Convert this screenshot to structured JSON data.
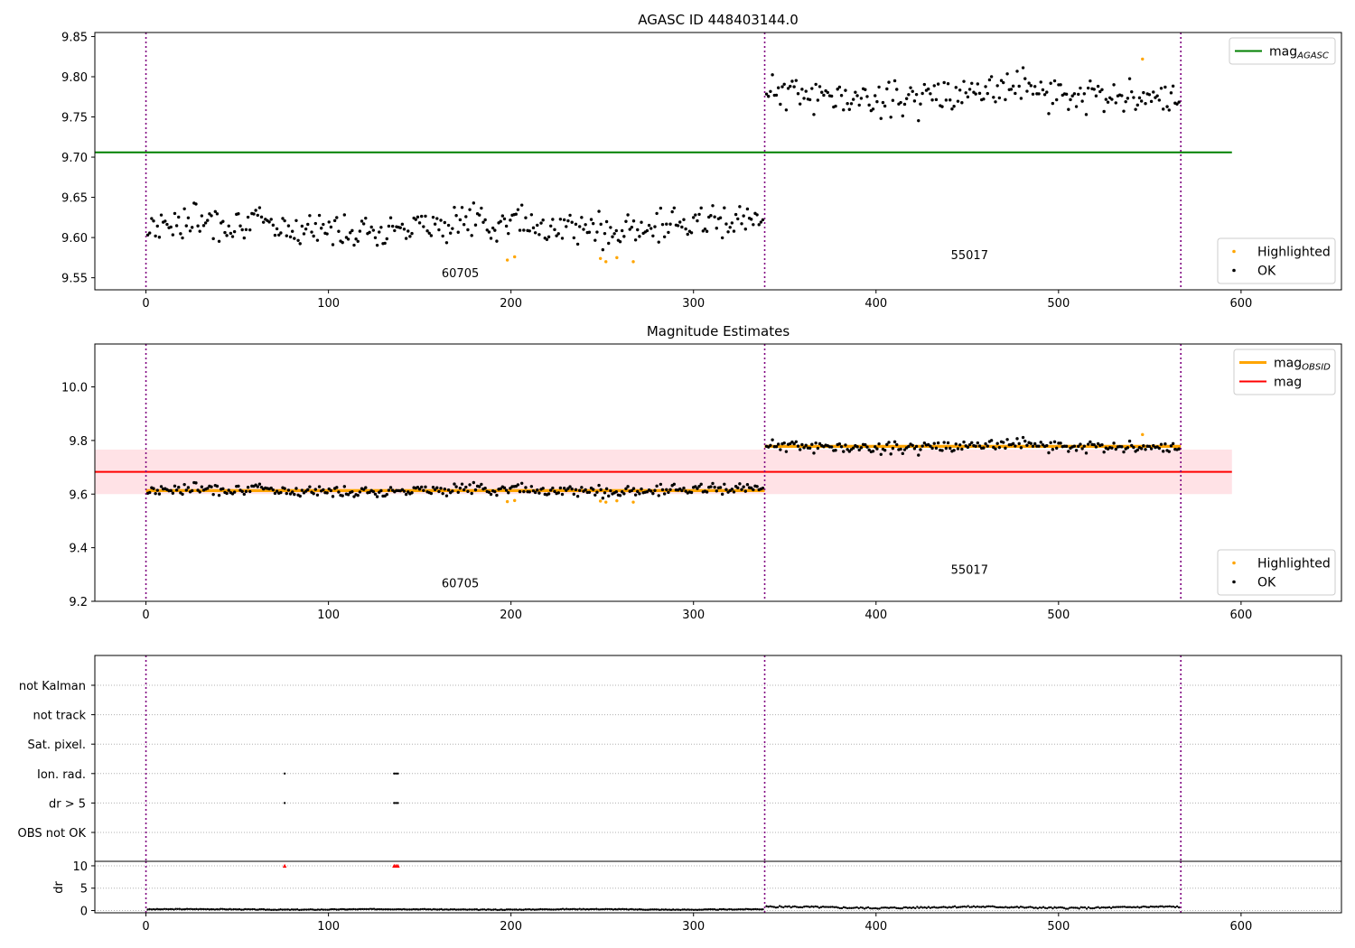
{
  "chart_data": [
    {
      "type": "scatter",
      "title": "AGASC ID 448403144.0",
      "xlim": [
        -28,
        655
      ],
      "ylim": [
        9.535,
        9.855
      ],
      "xticks": [
        0,
        100,
        200,
        300,
        400,
        500,
        600
      ],
      "yticks": [
        9.55,
        9.6,
        9.65,
        9.7,
        9.75,
        9.8,
        9.85
      ],
      "ytick_labels": [
        "9.55",
        "9.60",
        "9.65",
        "9.70",
        "9.75",
        "9.80",
        "9.85"
      ],
      "obs_boundaries": [
        0,
        339,
        567
      ],
      "obs_labels": [
        {
          "text": "60705",
          "x": 162,
          "y": 9.551
        },
        {
          "text": "55017",
          "x": 441,
          "y": 9.573
        }
      ],
      "lines": [
        {
          "name": "mag",
          "sub": "AGASC",
          "color": "#008000",
          "y": 9.706,
          "x": [
            -28,
            595
          ]
        }
      ],
      "legends": [
        {
          "position": "top-right",
          "entries": [
            {
              "label": "mag",
              "sub": "AGASC",
              "kind": "line",
              "color": "#008000"
            }
          ]
        },
        {
          "position": "bottom-right",
          "entries": [
            {
              "label": "Highlighted",
              "kind": "dot",
              "color": "#ffa500"
            },
            {
              "label": "OK",
              "kind": "dot",
              "color": "#000000"
            }
          ]
        }
      ],
      "series": [
        {
          "name": "OK",
          "color": "#000000",
          "generator": "obs_points",
          "segments": [
            {
              "x": [
                1,
                338
              ],
              "n": 320,
              "base": 9.615,
              "amp": 0.016,
              "seed": 7
            },
            {
              "x": [
                340,
                566
              ],
              "n": 210,
              "base": 9.778,
              "amp": 0.017,
              "seed": 11
            }
          ]
        },
        {
          "name": "Highlighted",
          "color": "#ffa500",
          "points": [
            [
              198,
              9.572
            ],
            [
              202,
              9.576
            ],
            [
              249,
              9.574
            ],
            [
              252,
              9.57
            ],
            [
              258,
              9.575
            ],
            [
              267,
              9.57
            ],
            [
              546,
              9.822
            ]
          ]
        }
      ]
    },
    {
      "type": "scatter",
      "title": "Magnitude Estimates",
      "xlim": [
        -28,
        655
      ],
      "ylim": [
        9.2,
        10.16
      ],
      "xticks": [
        0,
        100,
        200,
        300,
        400,
        500,
        600
      ],
      "yticks": [
        9.2,
        9.4,
        9.6,
        9.8,
        10.0
      ],
      "ytick_labels": [
        "9.2",
        "9.4",
        "9.6",
        "9.8",
        "10.0"
      ],
      "obs_boundaries": [
        0,
        339,
        567
      ],
      "obs_labels": [
        {
          "text": "60705",
          "x": 162,
          "y": 9.252
        },
        {
          "text": "55017",
          "x": 441,
          "y": 9.302
        }
      ],
      "band": {
        "y": [
          9.6,
          9.766
        ],
        "x": [
          -28,
          595
        ],
        "color": "#ffb6c1"
      },
      "lines": [
        {
          "name": "mag",
          "color": "#ff0000",
          "y": 9.683,
          "x": [
            -28,
            595
          ]
        },
        {
          "name": "mag OBSID",
          "sub": "OBSID",
          "color": "#ffa500",
          "segments": [
            {
              "x": [
                0,
                339
              ],
              "y": 9.613
            },
            {
              "x": [
                339,
                567
              ],
              "y": 9.778
            }
          ]
        }
      ],
      "legends": [
        {
          "position": "top-right",
          "entries": [
            {
              "label": "mag",
              "sub": "OBSID",
              "kind": "line",
              "color": "#ffa500"
            },
            {
              "label": "mag",
              "kind": "line",
              "color": "#ff0000"
            }
          ]
        },
        {
          "position": "bottom-right",
          "entries": [
            {
              "label": "Highlighted",
              "kind": "dot",
              "color": "#ffa500"
            },
            {
              "label": "OK",
              "kind": "dot",
              "color": "#000000"
            }
          ]
        }
      ],
      "series": [
        {
          "name": "OK",
          "color": "#000000",
          "generator": "obs_points",
          "segments": [
            {
              "x": [
                1,
                338
              ],
              "n": 320,
              "base": 9.615,
              "amp": 0.016,
              "seed": 7
            },
            {
              "x": [
                340,
                566
              ],
              "n": 210,
              "base": 9.778,
              "amp": 0.017,
              "seed": 11
            }
          ]
        },
        {
          "name": "Highlighted",
          "color": "#ffa500",
          "points": [
            [
              198,
              9.572
            ],
            [
              202,
              9.576
            ],
            [
              249,
              9.574
            ],
            [
              252,
              9.57
            ],
            [
              258,
              9.575
            ],
            [
              267,
              9.57
            ],
            [
              546,
              9.822
            ]
          ]
        }
      ]
    },
    {
      "type": "scatter",
      "title": "",
      "xlim": [
        -28,
        655
      ],
      "flag_labels": [
        "not Kalman",
        "not track",
        "Sat. pixel.",
        "Ion. rad.",
        "dr > 5",
        "OBS not OK"
      ],
      "obs_boundaries": [
        0,
        339,
        567
      ],
      "flag_points": [
        {
          "flag": "Ion. rad.",
          "x": [
            76,
            136,
            137,
            138
          ]
        },
        {
          "flag": "dr > 5",
          "x": [
            76,
            136,
            137,
            138
          ]
        }
      ]
    },
    {
      "type": "scatter",
      "title": "",
      "ylabel": "dr",
      "xlim": [
        -28,
        655
      ],
      "ylim": [
        -0.5,
        11
      ],
      "xticks": [
        0,
        100,
        200,
        300,
        400,
        500,
        600
      ],
      "yticks": [
        0,
        5,
        10
      ],
      "ytick_labels": [
        "0",
        "5",
        "10"
      ],
      "obs_boundaries": [
        0,
        339,
        567
      ],
      "series": [
        {
          "name": "dr",
          "color": "#000000",
          "generator": "dr_points",
          "segments": [
            {
              "x": [
                1,
                338
              ],
              "n": 330,
              "base": 0.25,
              "amp": 0.15,
              "seed": 3
            },
            {
              "x": [
                340,
                566
              ],
              "n": 220,
              "base": 0.7,
              "amp": 0.35,
              "seed": 5
            }
          ]
        },
        {
          "name": "dr > 5",
          "color": "#ff0000",
          "points": [
            [
              76,
              10
            ],
            [
              136,
              10
            ],
            [
              137,
              10
            ],
            [
              138,
              10
            ]
          ]
        }
      ]
    }
  ]
}
